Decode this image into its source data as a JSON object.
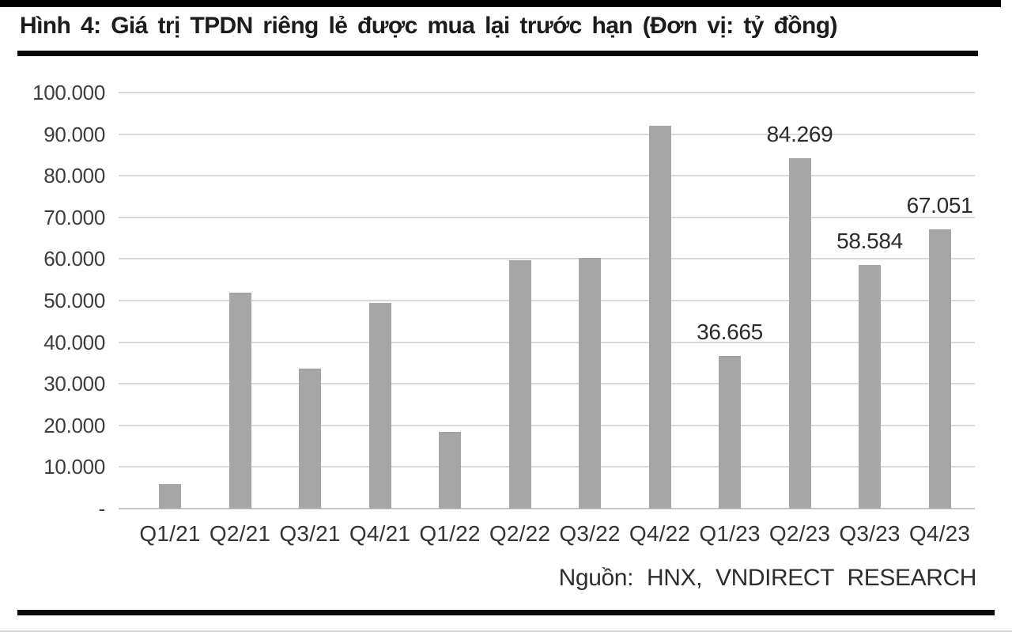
{
  "figure": {
    "title": "Hình 4: Giá trị TPDN riêng lẻ được mua lại trước hạn (Đơn vị: tỷ đồng)",
    "source": "Nguồn: HNX, VNDIRECT RESEARCH"
  },
  "chart_data": {
    "type": "bar",
    "title": "Giá trị TPDN riêng lẻ được mua lại trước hạn",
    "unit": "tỷ đồng",
    "xlabel": "",
    "ylabel": "",
    "categories": [
      "Q1/21",
      "Q2/21",
      "Q3/21",
      "Q4/21",
      "Q1/22",
      "Q2/22",
      "Q3/22",
      "Q4/22",
      "Q1/23",
      "Q2/23",
      "Q3/23",
      "Q4/23"
    ],
    "values": [
      5900,
      51900,
      33700,
      49500,
      18400,
      59700,
      60200,
      92000,
      36665,
      84269,
      58584,
      67051
    ],
    "data_labels": [
      null,
      null,
      null,
      null,
      null,
      null,
      null,
      null,
      "36.665",
      "84.269",
      "58.584",
      "67.051"
    ],
    "ylim": [
      0,
      100000
    ],
    "ytick_interval": 10000,
    "ytick_labels_top_to_bottom": [
      "100.000",
      "90.000",
      "80.000",
      "70.000",
      "60.000",
      "50.000",
      "40.000",
      "30.000",
      "20.000",
      "10.000",
      "-"
    ],
    "grid": "horizontal",
    "legend": "none",
    "bar_color": "#a6a6a6",
    "gridline_color": "#d9d9d9",
    "source": "Nguồn: HNX, VNDIRECT RESEARCH"
  }
}
